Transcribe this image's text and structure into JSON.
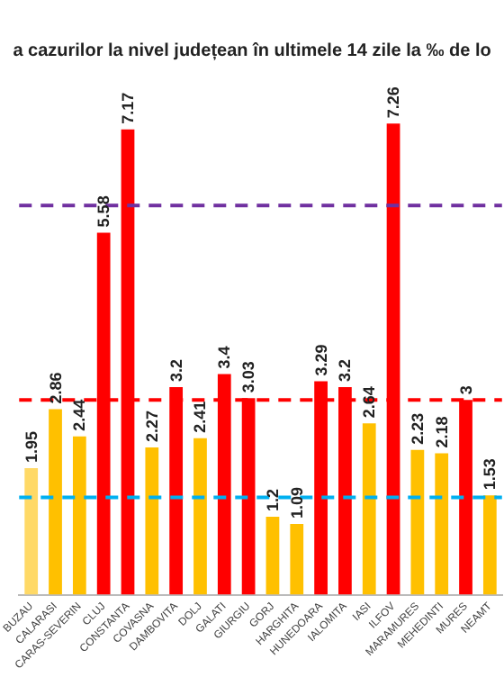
{
  "chart_data": {
    "type": "bar",
    "title": "a cazurilor la nivel județean în ultimele 14 zile la ‰ de lo",
    "categories": [
      "BUZAU",
      "CALARASI",
      "CARAS-SEVERIN",
      "CLUJ",
      "CONSTANTA",
      "COVASNA",
      "DAMBOVITA",
      "DOLJ",
      "GALATI",
      "GIURGIU",
      "GORJ",
      "HARGHITA",
      "HUNEDOARA",
      "IALOMITA",
      "IASI",
      "ILFOV",
      "MARAMURES",
      "MEHEDINTI",
      "MURES",
      "NEAMT"
    ],
    "values": [
      1.95,
      2.86,
      2.44,
      5.58,
      7.17,
      2.27,
      3.2,
      2.41,
      3.4,
      3.03,
      1.2,
      1.09,
      3.29,
      3.2,
      2.64,
      7.26,
      2.23,
      2.18,
      3,
      1.53
    ],
    "colors": [
      "#ffd966",
      "#ffc000",
      "#ffc000",
      "#ff0000",
      "#ff0000",
      "#ffc000",
      "#ff0000",
      "#ffc000",
      "#ff0000",
      "#ff0000",
      "#ffc000",
      "#ffc000",
      "#ff0000",
      "#ff0000",
      "#ffc000",
      "#ff0000",
      "#ffc000",
      "#ffc000",
      "#ff0000",
      "#ffc000"
    ],
    "data_labels": true,
    "ref_lines": [
      {
        "axis": "y",
        "value": 6,
        "color": "#7030a0",
        "line_style": "dashed"
      },
      {
        "axis": "y",
        "value": 3,
        "color": "#ff0000",
        "line_style": "dashed"
      },
      {
        "axis": "y",
        "value": 1.5,
        "color": "#00b0f0",
        "line_style": "dashed"
      }
    ],
    "grid": false,
    "legend": false
  }
}
